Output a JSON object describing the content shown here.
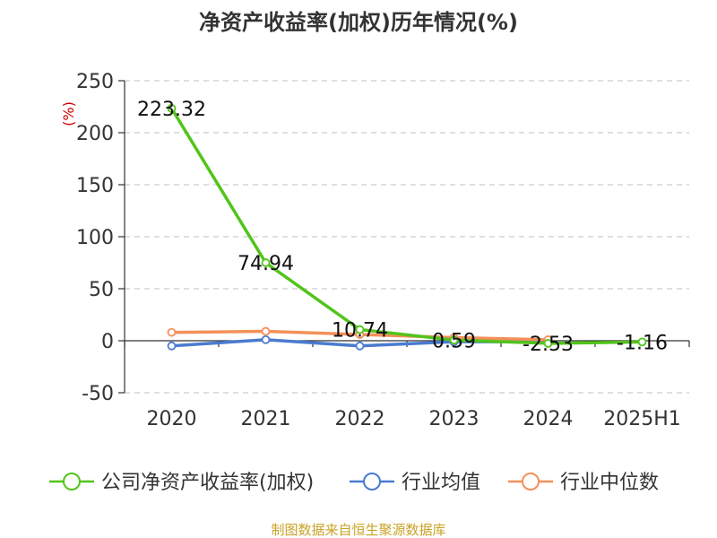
{
  "title": "净资产收益率(加权)历年情况(%)",
  "source": "制图数据来自恒生聚源数据库",
  "chart_data": {
    "type": "line",
    "title": "净资产收益率(加权)历年情况(%)",
    "ylabel": "(%)",
    "xlabel": "",
    "x": [
      "2020",
      "2021",
      "2022",
      "2023",
      "2024",
      "2025H1"
    ],
    "ylim": [
      -50,
      250
    ],
    "yticks": [
      250,
      200,
      150,
      100,
      50,
      0,
      -50
    ],
    "grid": true,
    "legend_position": "bottom",
    "series": [
      {
        "name": "公司净资产收益率(加权)",
        "color": "#52c41a",
        "values": [
          223.32,
          74.94,
          10.74,
          0.59,
          -2.53,
          -1.16
        ],
        "labels": [
          "223.32",
          "74.94",
          "10.74",
          "0.59",
          "-2.53",
          "-1.16"
        ]
      },
      {
        "name": "行业均值",
        "color": "#4a7bd0",
        "values": [
          -5,
          1,
          -5,
          -1,
          -1,
          null
        ]
      },
      {
        "name": "行业中位数",
        "color": "#f4905a",
        "values": [
          8,
          9,
          6,
          3,
          1,
          null
        ]
      }
    ]
  }
}
